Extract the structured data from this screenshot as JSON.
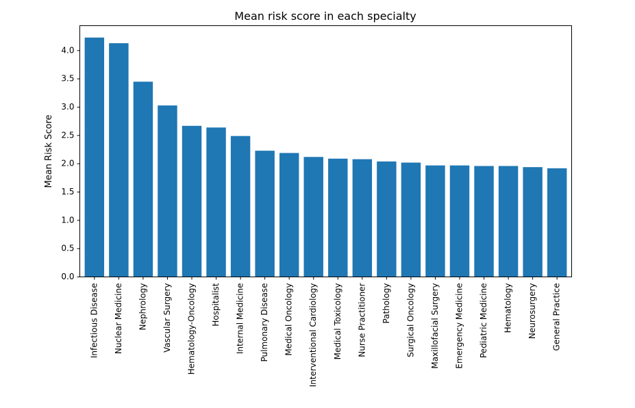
{
  "chart_data": {
    "type": "bar",
    "title": "Mean risk score in each specialty",
    "xlabel": "",
    "ylabel": "Mean Risk Score",
    "categories": [
      "Infectious Disease",
      "Nuclear Medicine",
      "Nephrology",
      "Vascular Surgery",
      "Hematology-Oncology",
      "Hospitalist",
      "Internal Medicine",
      "Pulmonary Disease",
      "Medical Oncology",
      "Interventional Cardiology",
      "Medical Toxicology",
      "Nurse Practitioner",
      "Pathology",
      "Surgical Oncology",
      "Maxillofacial Surgery",
      "Emergency Medicine",
      "Pediatric Medicine",
      "Hematology",
      "Neurosurgery",
      "General Practice"
    ],
    "values": [
      4.23,
      4.13,
      3.45,
      3.03,
      2.67,
      2.64,
      2.49,
      2.23,
      2.19,
      2.12,
      2.09,
      2.08,
      2.04,
      2.02,
      1.97,
      1.97,
      1.96,
      1.96,
      1.94,
      1.92
    ],
    "ylim": [
      0,
      4.44
    ],
    "yticks": [
      "0.0",
      "0.5",
      "1.0",
      "1.5",
      "2.0",
      "2.5",
      "3.0",
      "3.5",
      "4.0"
    ],
    "grid": false,
    "bar_color": "#1f77b4"
  }
}
